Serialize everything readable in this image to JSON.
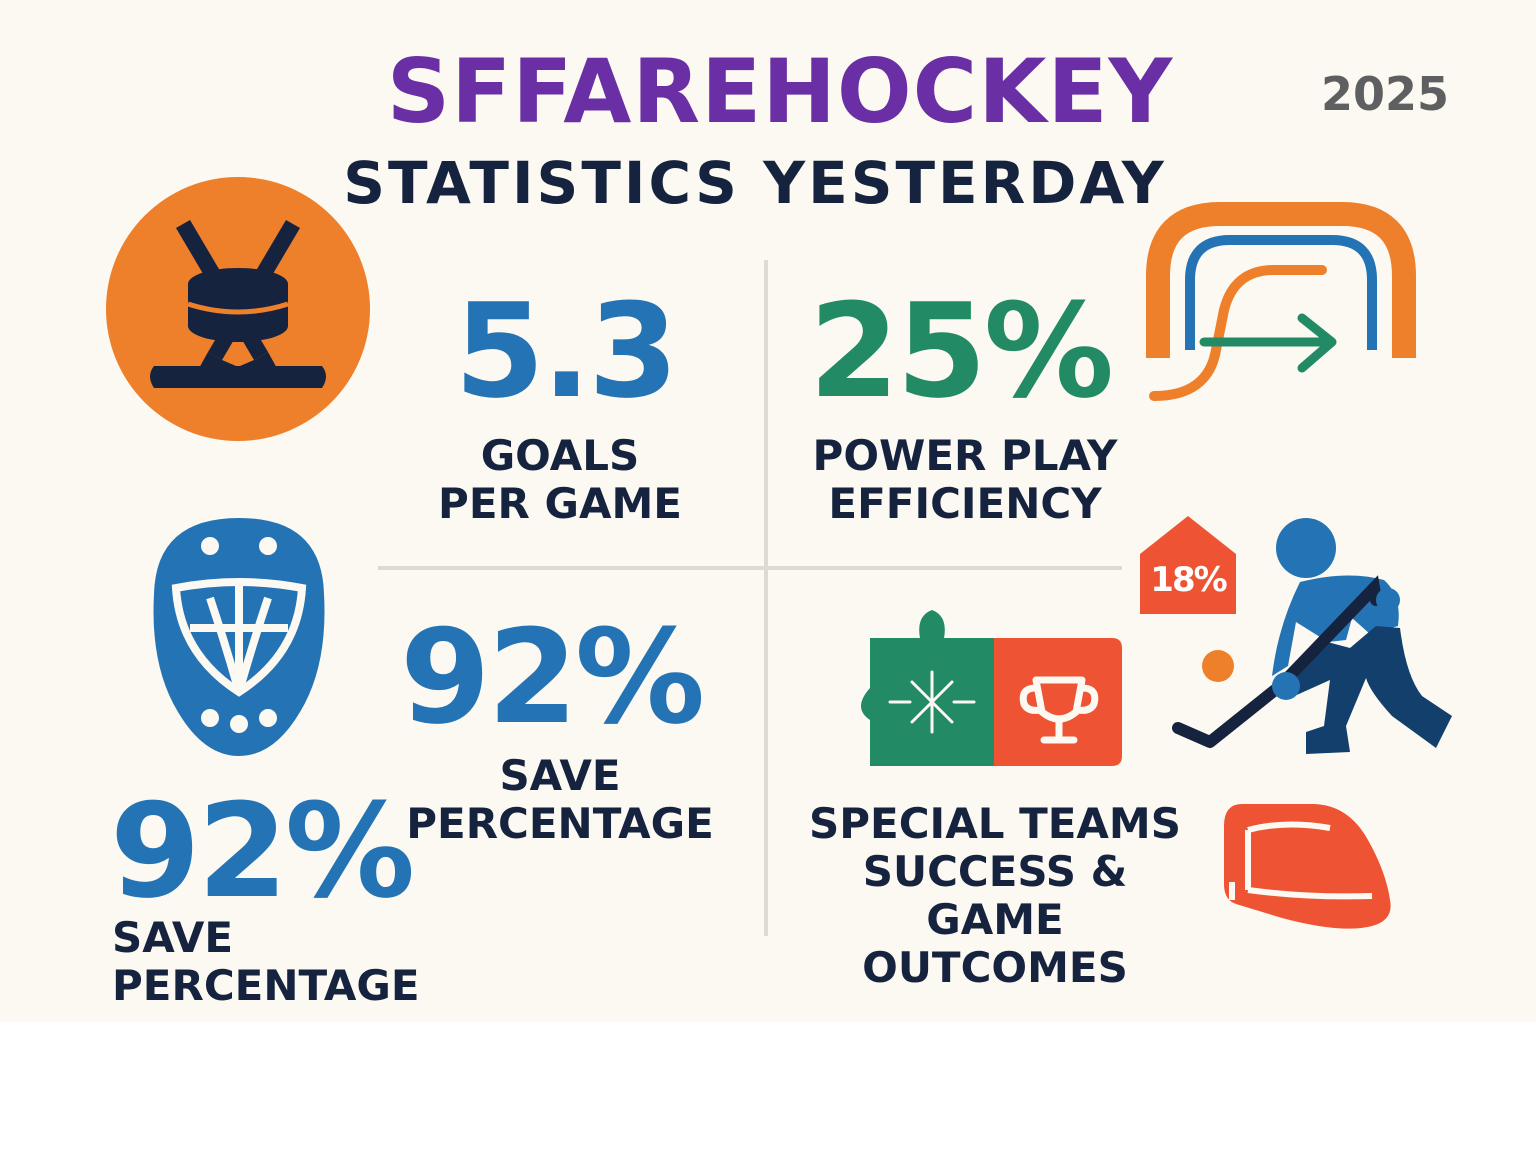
{
  "header": {
    "title": "SFFAREHOCKEY",
    "subtitle": "STATISTICS YESTERDAY",
    "year": "2025"
  },
  "stats": {
    "goals": {
      "value": "5.3",
      "label_line1": "GOALS",
      "label_line2": "PER GAME"
    },
    "power_play": {
      "value": "25%",
      "label_line1": "POWER PLAY",
      "label_line2": "EFFICIENCY"
    },
    "save_center": {
      "value": "92%",
      "label_line1": "SAVE",
      "label_line2": "PERCENTAGE"
    },
    "save_left": {
      "value": "92%",
      "label": "SAVE PERCENTAGE"
    },
    "special_teams": {
      "label_line1": "SPECIAL TEAMS",
      "label_line2": "SUCCESS &",
      "label_line3": "GAME OUTCOMES",
      "badge": "18%"
    }
  },
  "colors": {
    "purple": "#6a2fa4",
    "navy": "#16233f",
    "blue": "#2473b5",
    "green": "#228a64",
    "orange": "#ee7f2b",
    "red": "#ee5333"
  },
  "icons": [
    "puck-sticks-icon",
    "goal-net-icon",
    "goalie-mask-icon",
    "puzzle-trophy-icon",
    "hockey-player-icon",
    "percent-tag-icon",
    "cap-icon"
  ]
}
